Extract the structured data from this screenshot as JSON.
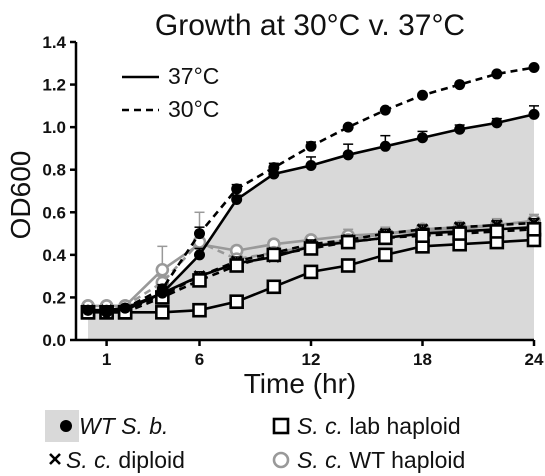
{
  "chart_data": {
    "type": "line",
    "title": "Growth at 30°C v. 37°C",
    "xlabel": "Time (hr)",
    "ylabel": "OD600",
    "xlim": [
      0,
      24
    ],
    "ylim": [
      0,
      1.4
    ],
    "xticks": [
      1,
      6,
      12,
      18,
      24
    ],
    "yticks": [
      "0.0",
      "0.2",
      "0.4",
      "0.6",
      "0.8",
      "1.0",
      "1.2",
      "1.4"
    ],
    "grid": false,
    "shaded_area_under": "WT S. b. 37°C",
    "x": [
      0,
      1,
      2,
      4,
      6,
      8,
      10,
      12,
      14,
      16,
      18,
      20,
      22,
      24
    ],
    "series": [
      {
        "name": "WT S. b.",
        "temperature": "37°C",
        "marker": "filled-circle",
        "color": "#000000",
        "values": [
          0.14,
          0.14,
          0.15,
          0.22,
          0.4,
          0.66,
          0.78,
          0.82,
          0.87,
          0.91,
          0.95,
          0.99,
          1.02,
          1.06
        ],
        "errors": [
          0,
          0,
          0,
          0.02,
          0.03,
          0.02,
          0.03,
          0.04,
          0.05,
          0.05,
          0.03,
          0.02,
          0.02,
          0.04
        ]
      },
      {
        "name": "WT S. b.",
        "temperature": "30°C",
        "marker": "filled-circle",
        "color": "#000000",
        "values": [
          0.14,
          0.13,
          0.15,
          0.24,
          0.5,
          0.71,
          0.81,
          0.91,
          1.0,
          1.08,
          1.15,
          1.2,
          1.25,
          1.28
        ],
        "errors": [
          0,
          0,
          0,
          0.02,
          0.03,
          0.02,
          0.02,
          0.02,
          0,
          0,
          0,
          0,
          0,
          0
        ]
      },
      {
        "name": "S. c. lab haploid",
        "temperature": "37°C",
        "marker": "open-square",
        "color": "#000000",
        "values": [
          0.13,
          0.13,
          0.13,
          0.13,
          0.14,
          0.18,
          0.25,
          0.32,
          0.35,
          0.4,
          0.44,
          0.45,
          0.46,
          0.47
        ],
        "errors": [
          0,
          0,
          0,
          0,
          0,
          0,
          0.02,
          0.02,
          0.01,
          0.02,
          0.02,
          0.02,
          0.02,
          0.03
        ]
      },
      {
        "name": "S. c. lab haploid",
        "temperature": "30°C",
        "marker": "open-square",
        "color": "#000000",
        "values": [
          0.13,
          0.13,
          0.13,
          0.2,
          0.28,
          0.35,
          0.4,
          0.43,
          0.46,
          0.48,
          0.49,
          0.5,
          0.51,
          0.52
        ],
        "errors": [
          0,
          0,
          0,
          0.02,
          0.03,
          0.03,
          0.03,
          0.03,
          0.03,
          0.02,
          0.02,
          0.02,
          0.02,
          0.02
        ]
      },
      {
        "name": "S. c. diploid",
        "temperature": "37°C",
        "marker": "cross",
        "color": "#000000",
        "values": [
          0.14,
          0.14,
          0.14,
          0.22,
          0.3,
          0.36,
          0.39,
          0.44,
          0.46,
          0.48,
          0.5,
          0.51,
          0.52,
          0.53
        ],
        "errors": [
          0,
          0,
          0,
          0.02,
          0.02,
          0.02,
          0.02,
          0.02,
          0.02,
          0.02,
          0.02,
          0.02,
          0.02,
          0.02
        ]
      },
      {
        "name": "S. c. diploid",
        "temperature": "30°C",
        "marker": "cross",
        "color": "#000000",
        "values": [
          0.14,
          0.14,
          0.14,
          0.21,
          0.3,
          0.37,
          0.41,
          0.45,
          0.47,
          0.5,
          0.52,
          0.53,
          0.54,
          0.55
        ],
        "errors": [
          0,
          0,
          0,
          0.02,
          0.02,
          0.02,
          0.02,
          0.02,
          0.02,
          0.02,
          0.02,
          0.02,
          0.02,
          0.02
        ]
      },
      {
        "name": "S. c. WT haploid",
        "temperature": "37°C",
        "marker": "open-circle",
        "color": "#999999",
        "values": [
          0.16,
          0.16,
          0.16,
          0.33,
          0.45,
          0.42,
          0.45,
          0.47,
          0.49,
          0.5,
          0.51,
          0.52,
          0.54,
          0.56
        ],
        "errors": [
          0,
          0,
          0,
          0.11,
          0.15,
          0.02,
          0.02,
          0.02,
          0.03,
          0.03,
          0.02,
          0.03,
          0.03,
          0.03
        ]
      },
      {
        "name": "S. c. WT haploid",
        "temperature": "30°C",
        "marker": "open-circle",
        "color": "#999999",
        "values": [
          0.16,
          0.16,
          0.16,
          0.27,
          0.46,
          0.38,
          0.41,
          0.44,
          0.47,
          0.5,
          0.52,
          0.53,
          0.54,
          0.56
        ],
        "errors": [
          0,
          0,
          0,
          0.03,
          0.04,
          0.02,
          0.02,
          0.02,
          0.02,
          0.02,
          0.02,
          0.02,
          0.02,
          0.02
        ]
      }
    ],
    "line_legend": [
      {
        "label": "37°C",
        "style": "solid"
      },
      {
        "label": "30°C",
        "style": "dashed"
      }
    ],
    "marker_legend": [
      {
        "prefix": "",
        "italic": "WT S. b.",
        "suffix": "",
        "marker": "filled-circle-shaded"
      },
      {
        "prefix": "",
        "italic": "S. c.",
        "suffix": " lab haploid",
        "marker": "open-square"
      },
      {
        "prefix": "",
        "italic": "S. c.",
        "suffix": " diploid",
        "marker": "cross"
      },
      {
        "prefix": "",
        "italic": "S. c.",
        "suffix": " WT haploid",
        "marker": "open-circle-gray"
      }
    ],
    "colors": {
      "shade": "#d9d9d9",
      "gray_series": "#999999",
      "ink": "#000000"
    }
  }
}
